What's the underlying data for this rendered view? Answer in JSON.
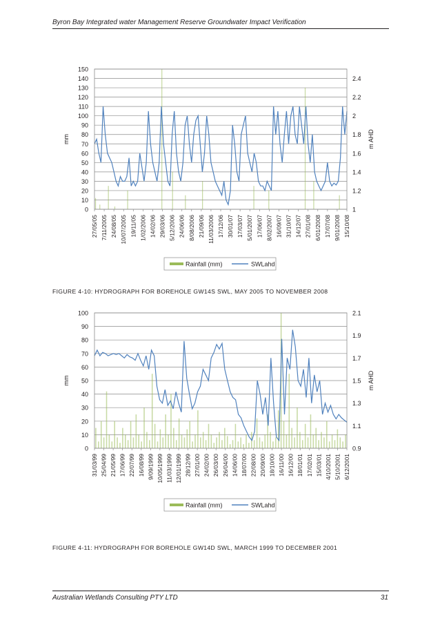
{
  "header": {
    "title": "Byron Bay Integrated water Management Reserve Groundwater Impact Verification"
  },
  "footer": {
    "company": "Australian Wetlands Consulting PTY LTD",
    "page_number": "31"
  },
  "captions": {
    "figure_4_10": "FIGURE 4-10: HYDROGRAPH FOR BOREHOLE GW14S SWL, MAY 2005 TO NOVEMBER 2008",
    "figure_4_11": "FIGURE 4-11: HYDROGRAPH FOR BOREHOLE GW14D SWL, MARCH 1999 TO DECEMBER 2001"
  },
  "chart_data": [
    {
      "type": "line",
      "title": "",
      "ylabel": "mm",
      "y2label": "m AHD",
      "ylim": [
        0,
        150
      ],
      "y_ticks": [
        0,
        10,
        20,
        30,
        40,
        50,
        60,
        70,
        80,
        90,
        100,
        110,
        120,
        130,
        140,
        150
      ],
      "y2lim": [
        1,
        2.5
      ],
      "y2_ticks": [
        "1",
        "1.2",
        "1.4",
        "1.6",
        "1.8",
        "2",
        "2.2",
        "2.4"
      ],
      "x_ticks": [
        "27/05/05",
        "7/11/2005",
        "24/08/05",
        "10/07/2005",
        "19/11/05",
        "1/02/2006",
        "14/02/06",
        "29/03/06",
        "5/12/2006",
        "24/06/06",
        "8/08/2006",
        "21/09/06",
        "11/03/2006",
        "17/12/06",
        "30/01/07",
        "17/03/07",
        "5/01/2007",
        "17/06/07",
        "8/02/2007",
        "16/09/07",
        "31/10/07",
        "14/12/07",
        "27/01/08",
        "6/01/2008",
        "17/07/08",
        "9/01/2008",
        "15/10/08"
      ],
      "legend": [
        "Rainfall (mm)",
        "SWLahd"
      ],
      "legend_position": "bottom",
      "grid": true,
      "colors": {
        "rainfall": "#9bbb59",
        "swl": "#4f81bd"
      },
      "series": [
        {
          "name": "SWLahd",
          "axis": "right",
          "values": [
            1.7,
            1.75,
            1.6,
            1.5,
            2.1,
            1.8,
            1.6,
            1.55,
            1.5,
            1.4,
            1.3,
            1.25,
            1.35,
            1.3,
            1.3,
            1.35,
            1.55,
            1.25,
            1.3,
            1.25,
            1.3,
            1.6,
            1.45,
            1.3,
            1.5,
            2.05,
            1.7,
            1.5,
            1.4,
            1.3,
            1.5,
            2.1,
            1.7,
            1.5,
            1.3,
            1.25,
            1.8,
            2.05,
            1.6,
            1.4,
            1.3,
            1.5,
            1.9,
            2.0,
            1.7,
            1.5,
            1.8,
            1.95,
            2.0,
            1.7,
            1.4,
            1.6,
            2.0,
            1.8,
            1.5,
            1.4,
            1.3,
            1.25,
            1.2,
            1.15,
            1.3,
            1.1,
            1.05,
            1.2,
            1.9,
            1.7,
            1.4,
            1.3,
            1.8,
            1.9,
            2.0,
            1.6,
            1.5,
            1.4,
            1.6,
            1.5,
            1.3,
            1.25,
            1.25,
            1.2,
            1.3,
            1.25,
            1.2,
            2.1,
            1.8,
            2.05,
            1.7,
            1.5,
            1.8,
            2.05,
            1.7,
            2.0,
            2.1,
            1.8,
            1.7,
            2.1,
            1.9,
            1.7,
            2.1,
            1.7,
            1.5,
            1.8,
            1.4,
            1.3,
            1.25,
            1.2,
            1.25,
            1.3,
            1.5,
            1.3,
            1.25,
            1.28,
            1.26,
            1.3,
            1.55,
            2.1,
            1.8,
            2.05
          ]
        },
        {
          "name": "Rainfall (mm)",
          "axis": "left",
          "values": [
            12,
            0,
            5,
            0,
            0,
            0,
            25,
            0,
            0,
            3,
            0,
            0,
            0,
            0,
            0,
            20,
            0,
            0,
            0,
            0,
            0,
            0,
            0,
            0,
            0,
            0,
            0,
            0,
            0,
            0,
            0,
            150,
            0,
            0,
            0,
            0,
            40,
            0,
            0,
            0,
            0,
            0,
            15,
            0,
            0,
            0,
            0,
            0,
            0,
            0,
            30,
            0,
            0,
            0,
            0,
            0,
            0,
            0,
            0,
            0,
            0,
            0,
            0,
            0,
            0,
            0,
            0,
            0,
            0,
            0,
            0,
            0,
            0,
            0,
            25,
            0,
            0,
            0,
            0,
            0,
            0,
            20,
            0,
            0,
            0,
            0,
            0,
            0,
            0,
            0,
            0,
            0,
            0,
            0,
            0,
            0,
            0,
            0,
            130,
            0,
            0,
            0,
            30,
            0,
            0,
            0,
            0,
            0,
            0,
            0,
            0,
            0,
            0,
            0,
            15,
            0,
            0,
            0
          ]
        }
      ]
    },
    {
      "type": "line",
      "title": "",
      "ylabel": "mm",
      "y2label": "m AHD",
      "ylim": [
        0,
        100
      ],
      "y_ticks": [
        0,
        10,
        20,
        30,
        40,
        50,
        60,
        70,
        80,
        90,
        100
      ],
      "y2lim": [
        0.9,
        2.1
      ],
      "y2_ticks": [
        "0.9",
        "1.1",
        "1.3",
        "1.5",
        "1.7",
        "1.9",
        "2.1"
      ],
      "x_ticks": [
        "31/03/99",
        "25/04/99",
        "21/05/99",
        "17/06/99",
        "22/07/99",
        "16/08/99",
        "9/09/1999",
        "10/05/1999",
        "11/03/1999",
        "12/01/1999",
        "28/12/99",
        "27/01/00",
        "24/02/00",
        "26/03/00",
        "26/04/00",
        "14/06/00",
        "18/07/00",
        "22/08/00",
        "20/09/00",
        "18/10/00",
        "16/11/00",
        "16/12/00",
        "18/01/01",
        "17/02/01",
        "15/03/01",
        "4/10/2001",
        "5/10/2001",
        "6/12/2001"
      ],
      "legend": [
        "Rainfall (mm)",
        "SWLahd"
      ],
      "legend_position": "bottom",
      "grid": true,
      "colors": {
        "rainfall": "#9bbb59",
        "swl": "#4f81bd"
      },
      "series": [
        {
          "name": "SWLahd",
          "axis": "right",
          "values": [
            1.72,
            1.77,
            1.72,
            1.75,
            1.74,
            1.72,
            1.73,
            1.74,
            1.73,
            1.74,
            1.72,
            1.7,
            1.73,
            1.71,
            1.7,
            1.68,
            1.74,
            1.68,
            1.63,
            1.72,
            1.6,
            1.77,
            1.72,
            1.45,
            1.33,
            1.3,
            1.42,
            1.28,
            1.32,
            1.25,
            1.4,
            1.3,
            1.22,
            1.85,
            1.52,
            1.38,
            1.25,
            1.3,
            1.4,
            1.45,
            1.6,
            1.55,
            1.5,
            1.7,
            1.75,
            1.82,
            1.78,
            1.83,
            1.6,
            1.5,
            1.4,
            1.35,
            1.33,
            1.2,
            1.17,
            1.1,
            1.05,
            1.0,
            0.97,
            1.05,
            1.5,
            1.38,
            1.2,
            1.35,
            1.1,
            1.7,
            1.3,
            1.0,
            0.97,
            1.87,
            1.2,
            1.7,
            1.6,
            1.95,
            1.8,
            1.5,
            1.45,
            1.6,
            1.35,
            1.7,
            1.3,
            1.55,
            1.4,
            1.5,
            1.2,
            1.3,
            1.22,
            1.28,
            1.2,
            1.16,
            1.2,
            1.17,
            1.15,
            1.13
          ]
        },
        {
          "name": "Rainfall (mm)",
          "axis": "left",
          "values": [
            15,
            5,
            20,
            8,
            42,
            10,
            5,
            20,
            8,
            4,
            15,
            10,
            6,
            20,
            8,
            25,
            10,
            5,
            30,
            12,
            6,
            55,
            18,
            5,
            14,
            8,
            25,
            10,
            40,
            15,
            6,
            22,
            10,
            8,
            14,
            20,
            5,
            10,
            28,
            8,
            12,
            6,
            18,
            10,
            4,
            8,
            12,
            6,
            15,
            9,
            3,
            6,
            18,
            5,
            8,
            3,
            10,
            4,
            12,
            6,
            22,
            8,
            5,
            10,
            25,
            12,
            5,
            8,
            28,
            100,
            20,
            10,
            55,
            15,
            8,
            30,
            12,
            6,
            18,
            8,
            25,
            10,
            15,
            6,
            12,
            8,
            20,
            5,
            10,
            6,
            14,
            8,
            5,
            10
          ]
        }
      ]
    }
  ]
}
